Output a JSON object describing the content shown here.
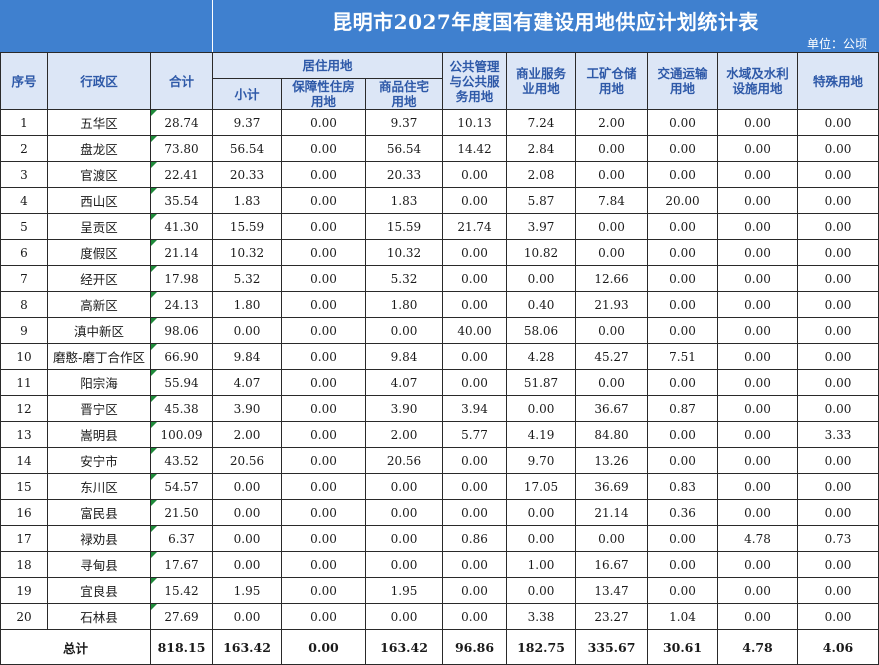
{
  "title": "昆明市2027年度国有建设用地供应计划统计表",
  "unit": "单位：公顷",
  "headers": {
    "seq": "序号",
    "district": "行政区",
    "total": "合计",
    "residential_group": "居住用地",
    "subtotal": "小计",
    "affordable": "保障性住房用地",
    "commercial_housing": "商品住宅用地",
    "public_service": "公共管理与公共服务用地",
    "business": "商业服务业用地",
    "industrial": "工矿仓储用地",
    "transport": "交通运输用地",
    "water": "水域及水利设施用地",
    "special": "特殊用地"
  },
  "header_lines": {
    "affordable": [
      "保障性住房",
      "用地"
    ],
    "commercial_housing": [
      "商品住宅",
      "用地"
    ],
    "public_service": [
      "公共管理",
      "与公共服",
      "务用地"
    ],
    "business": [
      "商业服务",
      "业用地"
    ],
    "industrial": [
      "工矿仓储",
      "用地"
    ],
    "transport": [
      "交通运输",
      "用地"
    ],
    "water": [
      "水域及水利",
      "设施用地"
    ]
  },
  "rows": [
    [
      "1",
      "五华区",
      "28.74",
      "9.37",
      "0.00",
      "9.37",
      "10.13",
      "7.24",
      "2.00",
      "0.00",
      "0.00",
      "0.00"
    ],
    [
      "2",
      "盘龙区",
      "73.80",
      "56.54",
      "0.00",
      "56.54",
      "14.42",
      "2.84",
      "0.00",
      "0.00",
      "0.00",
      "0.00"
    ],
    [
      "3",
      "官渡区",
      "22.41",
      "20.33",
      "0.00",
      "20.33",
      "0.00",
      "2.08",
      "0.00",
      "0.00",
      "0.00",
      "0.00"
    ],
    [
      "4",
      "西山区",
      "35.54",
      "1.83",
      "0.00",
      "1.83",
      "0.00",
      "5.87",
      "7.84",
      "20.00",
      "0.00",
      "0.00"
    ],
    [
      "5",
      "呈贡区",
      "41.30",
      "15.59",
      "0.00",
      "15.59",
      "21.74",
      "3.97",
      "0.00",
      "0.00",
      "0.00",
      "0.00"
    ],
    [
      "6",
      "度假区",
      "21.14",
      "10.32",
      "0.00",
      "10.32",
      "0.00",
      "10.82",
      "0.00",
      "0.00",
      "0.00",
      "0.00"
    ],
    [
      "7",
      "经开区",
      "17.98",
      "5.32",
      "0.00",
      "5.32",
      "0.00",
      "0.00",
      "12.66",
      "0.00",
      "0.00",
      "0.00"
    ],
    [
      "8",
      "高新区",
      "24.13",
      "1.80",
      "0.00",
      "1.80",
      "0.00",
      "0.40",
      "21.93",
      "0.00",
      "0.00",
      "0.00"
    ],
    [
      "9",
      "滇中新区",
      "98.06",
      "0.00",
      "0.00",
      "0.00",
      "40.00",
      "58.06",
      "0.00",
      "0.00",
      "0.00",
      "0.00"
    ],
    [
      "10",
      "磨憨-磨丁合作区",
      "66.90",
      "9.84",
      "0.00",
      "9.84",
      "0.00",
      "4.28",
      "45.27",
      "7.51",
      "0.00",
      "0.00"
    ],
    [
      "11",
      "阳宗海",
      "55.94",
      "4.07",
      "0.00",
      "4.07",
      "0.00",
      "51.87",
      "0.00",
      "0.00",
      "0.00",
      "0.00"
    ],
    [
      "12",
      "晋宁区",
      "45.38",
      "3.90",
      "0.00",
      "3.90",
      "3.94",
      "0.00",
      "36.67",
      "0.87",
      "0.00",
      "0.00"
    ],
    [
      "13",
      "嵩明县",
      "100.09",
      "2.00",
      "0.00",
      "2.00",
      "5.77",
      "4.19",
      "84.80",
      "0.00",
      "0.00",
      "3.33"
    ],
    [
      "14",
      "安宁市",
      "43.52",
      "20.56",
      "0.00",
      "20.56",
      "0.00",
      "9.70",
      "13.26",
      "0.00",
      "0.00",
      "0.00"
    ],
    [
      "15",
      "东川区",
      "54.57",
      "0.00",
      "0.00",
      "0.00",
      "0.00",
      "17.05",
      "36.69",
      "0.83",
      "0.00",
      "0.00"
    ],
    [
      "16",
      "富民县",
      "21.50",
      "0.00",
      "0.00",
      "0.00",
      "0.00",
      "0.00",
      "21.14",
      "0.36",
      "0.00",
      "0.00"
    ],
    [
      "17",
      "禄劝县",
      "6.37",
      "0.00",
      "0.00",
      "0.00",
      "0.86",
      "0.00",
      "0.00",
      "0.00",
      "4.78",
      "0.73"
    ],
    [
      "18",
      "寻甸县",
      "17.67",
      "0.00",
      "0.00",
      "0.00",
      "0.00",
      "1.00",
      "16.67",
      "0.00",
      "0.00",
      "0.00"
    ],
    [
      "19",
      "宜良县",
      "15.42",
      "1.95",
      "0.00",
      "1.95",
      "0.00",
      "0.00",
      "13.47",
      "0.00",
      "0.00",
      "0.00"
    ],
    [
      "20",
      "石林县",
      "27.69",
      "0.00",
      "0.00",
      "0.00",
      "0.00",
      "3.38",
      "23.27",
      "1.04",
      "0.00",
      "0.00"
    ]
  ],
  "totals": {
    "label": "总计",
    "values": [
      "818.15",
      "163.42",
      "0.00",
      "163.42",
      "96.86",
      "182.75",
      "335.67",
      "30.61",
      "4.78",
      "4.06"
    ]
  },
  "colors": {
    "title_bg": "#3f80cf",
    "header_bg": "#dce6f6",
    "header_text": "#2e59a8",
    "corner_mark": "#1e8a3a"
  }
}
